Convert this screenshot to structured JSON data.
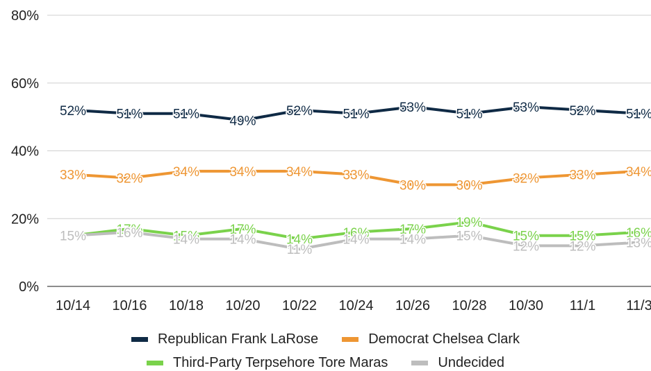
{
  "chart_data": {
    "type": "line",
    "categories": [
      "10/14",
      "10/16",
      "10/18",
      "10/20",
      "10/22",
      "10/24",
      "10/26",
      "10/28",
      "10/30",
      "11/1",
      "11/3"
    ],
    "ylim": [
      0,
      80
    ],
    "yticks": [
      "0%",
      "20%",
      "40%",
      "60%",
      "80%"
    ],
    "ytick_values": [
      0,
      20,
      40,
      60,
      80
    ],
    "grid": true,
    "legend_position": "bottom",
    "series": [
      {
        "name": "Republican Frank LaRose",
        "color": "#0f2a45",
        "values": [
          52,
          51,
          51,
          49,
          52,
          51,
          53,
          51,
          53,
          52,
          51
        ],
        "labels": [
          "52%",
          "51%",
          "51%",
          "49%",
          "52%",
          "51%",
          "53%",
          "51%",
          "53%",
          "52%",
          "51%"
        ]
      },
      {
        "name": "Democrat Chelsea Clark",
        "color": "#ee9633",
        "values": [
          33,
          32,
          34,
          34,
          34,
          33,
          30,
          30,
          32,
          33,
          34
        ],
        "labels": [
          "33%",
          "32%",
          "34%",
          "34%",
          "34%",
          "33%",
          "30%",
          "30%",
          "32%",
          "33%",
          "34%"
        ]
      },
      {
        "name": "Third-Party Terpsehore Tore Maras",
        "color": "#7ad24b",
        "values": [
          15,
          17,
          15,
          17,
          14,
          16,
          17,
          19,
          15,
          15,
          16
        ],
        "labels": [
          "15%",
          "17%",
          "15%",
          "17%",
          "14%",
          "16%",
          "17%",
          "19%",
          "15%",
          "15%",
          "16%"
        ]
      },
      {
        "name": "Undecided",
        "color": "#bdbdbd",
        "values": [
          15,
          16,
          14,
          14,
          11,
          14,
          14,
          15,
          12,
          12,
          13
        ],
        "labels": [
          "15%",
          "16%",
          "14%",
          "14%",
          "11%",
          "14%",
          "14%",
          "15%",
          "12%",
          "12%",
          "13%"
        ]
      }
    ]
  }
}
